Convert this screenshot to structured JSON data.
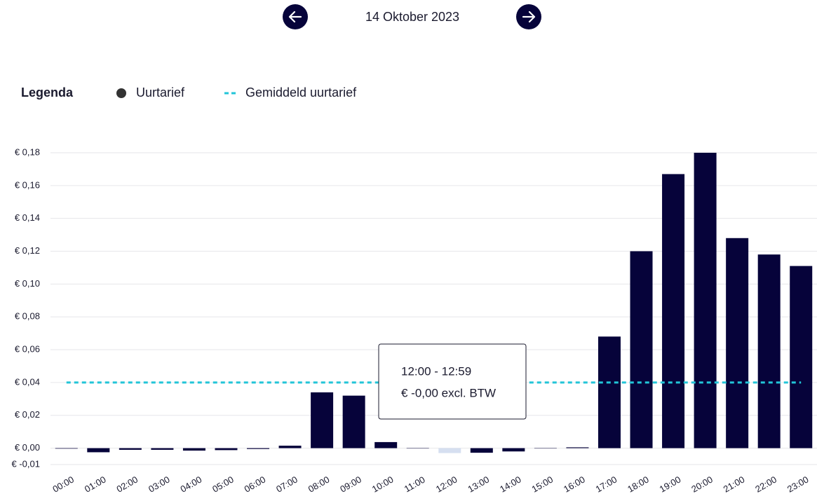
{
  "header": {
    "date": "14 Oktober 2023"
  },
  "chart_data": {
    "type": "bar",
    "legend": {
      "title": "Legenda",
      "bar_label": "Uurtarief",
      "line_label": "Gemiddeld uurtarief"
    },
    "categories": [
      "00:00",
      "01:00",
      "02:00",
      "03:00",
      "04:00",
      "05:00",
      "06:00",
      "07:00",
      "08:00",
      "09:00",
      "10:00",
      "11:00",
      "12:00",
      "13:00",
      "14:00",
      "15:00",
      "16:00",
      "17:00",
      "18:00",
      "19:00",
      "20:00",
      "21:00",
      "22:00",
      "23:00"
    ],
    "series": [
      {
        "name": "Uurtarief",
        "color": "#06033a",
        "highlight_color": "#d6dff0",
        "values": [
          -0.0003,
          -0.0025,
          -0.001,
          -0.001,
          -0.0015,
          -0.0012,
          -0.0005,
          0.0015,
          0.034,
          0.032,
          0.0037,
          0,
          -0.003,
          -0.0028,
          -0.002,
          -0.0002,
          0.0005,
          0.068,
          0.12,
          0.167,
          0.18,
          0.128,
          0.118,
          0.111
        ]
      }
    ],
    "average": {
      "name": "Gemiddeld uurtarief",
      "value": 0.04,
      "color": "#22c5d8"
    },
    "highlight_index": 12,
    "tooltip": {
      "time": "12:00 - 12:59",
      "price": "€ -0,00 excl. BTW"
    },
    "ylim": [
      -0.01,
      0.18
    ],
    "yticks": [
      {
        "value": -0.01,
        "label": "€ -0,01"
      },
      {
        "value": 0,
        "label": "€ 0,00"
      },
      {
        "value": 0.02,
        "label": "€ 0,02"
      },
      {
        "value": 0.04,
        "label": "€ 0,04"
      },
      {
        "value": 0.06,
        "label": "€ 0,06"
      },
      {
        "value": 0.08,
        "label": "€ 0,08"
      },
      {
        "value": 0.1,
        "label": "€ 0,10"
      },
      {
        "value": 0.12,
        "label": "€ 0,12"
      },
      {
        "value": 0.14,
        "label": "€ 0,14"
      },
      {
        "value": 0.16,
        "label": "€ 0,16"
      },
      {
        "value": 0.18,
        "label": "€ 0,18"
      }
    ],
    "grid": true
  }
}
